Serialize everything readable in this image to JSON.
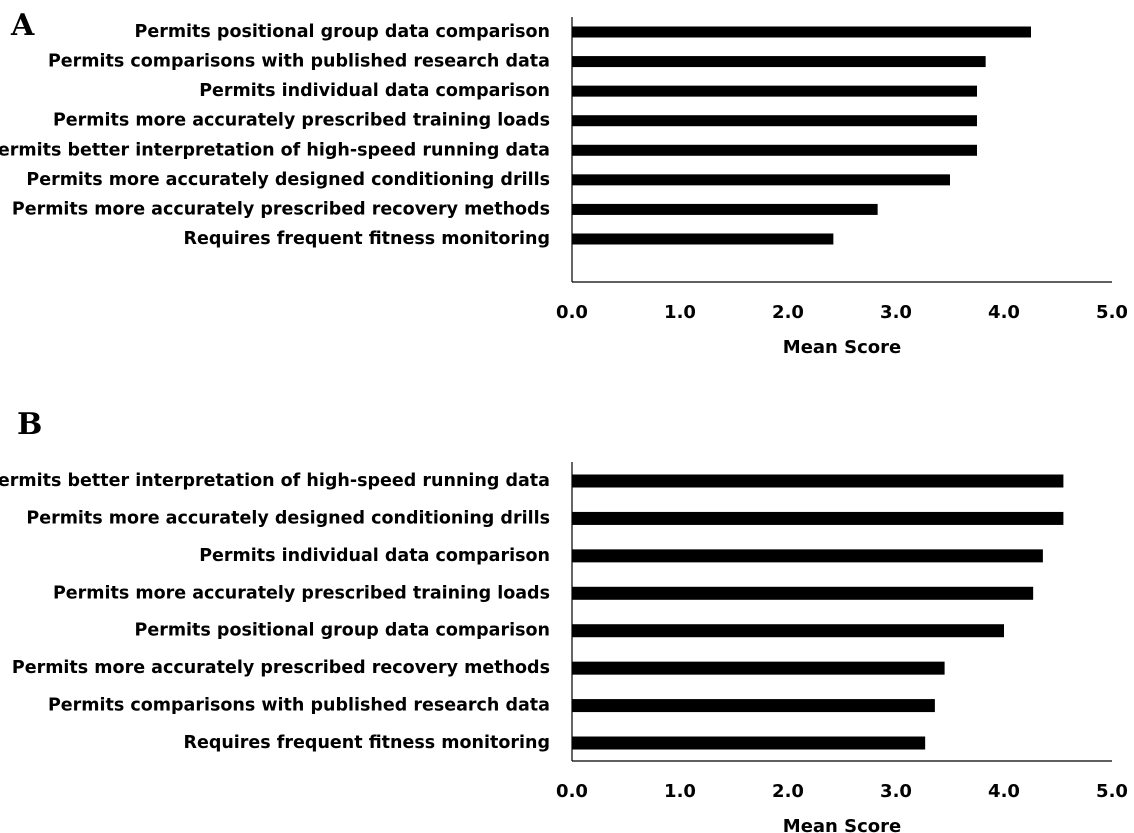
{
  "chart_data": [
    {
      "type": "bar",
      "orientation": "horizontal",
      "panel_label": "A",
      "categories": [
        "Permits positional group data comparison",
        "Permits comparisons with published research data",
        "Permits individual data comparison",
        "Permits more accurately prescribed training loads",
        "Permits better interpretation of high-speed running data",
        "Permits more accurately designed conditioning drills",
        "Permits more accurately prescribed recovery methods",
        "Requires frequent fitness monitoring"
      ],
      "values": [
        4.25,
        3.83,
        3.75,
        3.75,
        3.75,
        3.5,
        2.83,
        2.42
      ],
      "xlabel": "Mean Score",
      "xlim": [
        0,
        5
      ],
      "xticks": [
        "0.0",
        "1.0",
        "2.0",
        "3.0",
        "4.0",
        "5.0"
      ],
      "grid": false,
      "bar_color": "#000000"
    },
    {
      "type": "bar",
      "orientation": "horizontal",
      "panel_label": "B",
      "categories": [
        "Permits better interpretation of high-speed running data",
        "Permits more accurately designed conditioning drills",
        "Permits individual data comparison",
        "Permits more accurately prescribed training loads",
        "Permits positional group data comparison",
        "Permits more accurately prescribed recovery methods",
        "Permits comparisons with published research data",
        "Requires frequent fitness monitoring"
      ],
      "values": [
        4.55,
        4.55,
        4.36,
        4.27,
        4.0,
        3.45,
        3.36,
        3.27
      ],
      "xlabel": "Mean Score",
      "xlim": [
        0,
        5
      ],
      "xticks": [
        "0.0",
        "1.0",
        "2.0",
        "3.0",
        "4.0",
        "5.0"
      ],
      "grid": false,
      "bar_color": "#000000"
    }
  ]
}
